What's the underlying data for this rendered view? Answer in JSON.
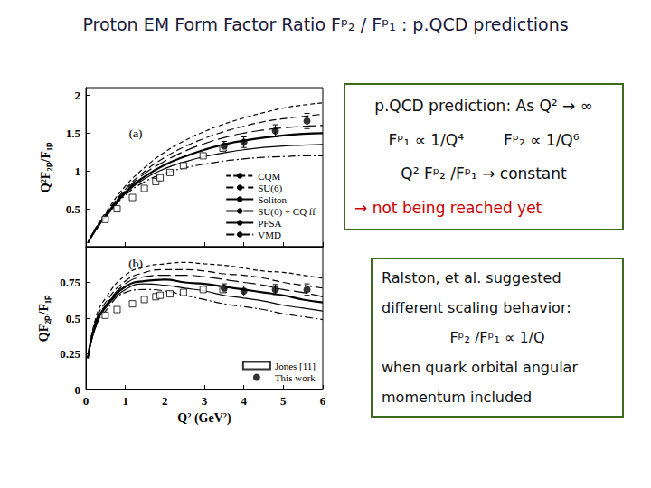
{
  "title": "Proton EM Form Factor Ratio Fᵖ₂ / Fᵖ₁ : p.QCD predictions",
  "chart_data": [
    {
      "type": "line",
      "ylabel": "Q²F₂ₚ/F₁ₚ",
      "color": "#000000",
      "xlim": [
        0,
        6
      ],
      "xticks": [
        0,
        1,
        2,
        3,
        4,
        5,
        6
      ],
      "ylim": [
        0,
        2.1
      ],
      "yticks": [
        0.5,
        1,
        1.5,
        2
      ],
      "grid": false,
      "legend": "lower right",
      "tick_labels": "y",
      "annotations": [
        {
          "text": "(a)",
          "x": 1.26,
          "y": 1.5
        }
      ],
      "series": [
        {
          "name": "CQM",
          "type": "line",
          "line_style": "short-dash",
          "x": [
            0.05,
            0.25,
            0.5,
            1,
            1.5,
            2,
            2.5,
            3,
            3.5,
            4,
            4.5,
            5,
            5.5,
            6
          ],
          "values": [
            0.05,
            0.25,
            0.45,
            0.8,
            1.05,
            1.25,
            1.4,
            1.52,
            1.62,
            1.7,
            1.77,
            1.83,
            1.87,
            1.9
          ]
        },
        {
          "name": "SU(6)",
          "type": "line",
          "line_style": "dash",
          "x": [
            0.05,
            0.25,
            0.5,
            1,
            1.5,
            2,
            2.5,
            3,
            3.5,
            4,
            4.5,
            5,
            5.5,
            6
          ],
          "values": [
            0.05,
            0.24,
            0.43,
            0.76,
            1.0,
            1.18,
            1.32,
            1.43,
            1.52,
            1.59,
            1.65,
            1.69,
            1.72,
            1.75
          ]
        },
        {
          "name": "Soliton",
          "type": "line",
          "line_style": "thick",
          "x": [
            0.05,
            0.25,
            0.5,
            1,
            1.5,
            2,
            2.5,
            3,
            3.5,
            4,
            4.5,
            5,
            5.5,
            6
          ],
          "values": [
            0.05,
            0.23,
            0.41,
            0.72,
            0.93,
            1.08,
            1.19,
            1.28,
            1.35,
            1.4,
            1.44,
            1.47,
            1.49,
            1.5
          ]
        },
        {
          "name": "SU(6) + CQ ff",
          "type": "line",
          "line_style": "long-dash",
          "x": [
            0.05,
            0.25,
            0.5,
            1,
            1.5,
            2,
            2.5,
            3,
            3.5,
            4,
            4.5,
            5,
            5.5,
            6
          ],
          "values": [
            0.05,
            0.24,
            0.42,
            0.74,
            0.97,
            1.13,
            1.26,
            1.36,
            1.44,
            1.5,
            1.54,
            1.57,
            1.59,
            1.6
          ]
        },
        {
          "name": "PFSA",
          "type": "line",
          "line_style": "solid",
          "x": [
            0.05,
            0.25,
            0.5,
            1,
            1.5,
            2,
            2.5,
            3,
            3.5,
            4,
            4.5,
            5,
            5.5,
            6
          ],
          "values": [
            0.05,
            0.22,
            0.4,
            0.7,
            0.9,
            1.03,
            1.12,
            1.19,
            1.24,
            1.28,
            1.31,
            1.33,
            1.34,
            1.35
          ]
        },
        {
          "name": "VMD",
          "type": "line",
          "line_style": "dash-dot",
          "x": [
            0.05,
            0.25,
            0.5,
            1,
            1.5,
            2,
            2.5,
            3,
            3.5,
            4,
            4.5,
            5,
            5.5,
            6
          ],
          "values": [
            0.05,
            0.22,
            0.39,
            0.68,
            0.86,
            0.97,
            1.04,
            1.09,
            1.13,
            1.16,
            1.18,
            1.19,
            1.2,
            1.2
          ]
        },
        {
          "type": "scatter",
          "marker": "square-open",
          "x": [
            0.49,
            0.79,
            1.18,
            1.48,
            1.77,
            1.88,
            2.13,
            2.47,
            2.97,
            3.47
          ],
          "values": [
            0.36,
            0.5,
            0.65,
            0.77,
            0.86,
            0.91,
            0.98,
            1.07,
            1.2,
            1.3
          ]
        },
        {
          "type": "scatter",
          "marker": "circle",
          "x": [
            3.5,
            4.0,
            4.8,
            5.6
          ],
          "values": [
            1.33,
            1.38,
            1.53,
            1.66
          ],
          "errors": [
            0.06,
            0.07,
            0.08,
            0.1
          ]
        }
      ]
    },
    {
      "type": "line",
      "xlabel": "Q² (GeV²)",
      "ylabel": "QF₂ₚ/F₁ₚ",
      "color": "#000000",
      "xlim": [
        0,
        6
      ],
      "xticks": [
        0,
        1,
        2,
        3,
        4,
        5,
        6
      ],
      "ylim": [
        0,
        1
      ],
      "yticks": [
        0,
        0.25,
        0.5,
        0.75
      ],
      "grid": false,
      "legend": "lower right",
      "annotations": [
        {
          "text": "(b)",
          "x": 1.26,
          "y": 0.88
        }
      ],
      "series": [
        {
          "type": "line",
          "line_style": "short-dash",
          "x": [
            0.05,
            0.25,
            0.5,
            1,
            1.5,
            2,
            2.5,
            3,
            3.5,
            4,
            4.5,
            5,
            5.5,
            6
          ],
          "values": [
            0.22,
            0.5,
            0.64,
            0.8,
            0.86,
            0.88,
            0.89,
            0.88,
            0.87,
            0.85,
            0.83,
            0.82,
            0.8,
            0.78
          ]
        },
        {
          "type": "line",
          "line_style": "dash",
          "x": [
            0.05,
            0.25,
            0.5,
            1,
            1.5,
            2,
            2.5,
            3,
            3.5,
            4,
            4.5,
            5,
            5.5,
            6
          ],
          "values": [
            0.22,
            0.48,
            0.61,
            0.76,
            0.82,
            0.84,
            0.84,
            0.83,
            0.81,
            0.8,
            0.78,
            0.75,
            0.73,
            0.71
          ]
        },
        {
          "type": "line",
          "line_style": "thick",
          "x": [
            0.05,
            0.25,
            0.5,
            1,
            1.5,
            2,
            2.5,
            3,
            3.5,
            4,
            4.5,
            5,
            5.5,
            6
          ],
          "values": [
            0.22,
            0.46,
            0.58,
            0.72,
            0.76,
            0.77,
            0.75,
            0.74,
            0.72,
            0.7,
            0.68,
            0.66,
            0.63,
            0.61
          ]
        },
        {
          "type": "line",
          "line_style": "long-dash",
          "x": [
            0.05,
            0.25,
            0.5,
            1,
            1.5,
            2,
            2.5,
            3,
            3.5,
            4,
            4.5,
            5,
            5.5,
            6
          ],
          "values": [
            0.22,
            0.48,
            0.59,
            0.74,
            0.79,
            0.8,
            0.8,
            0.79,
            0.77,
            0.75,
            0.73,
            0.7,
            0.68,
            0.65
          ]
        },
        {
          "type": "line",
          "line_style": "solid",
          "x": [
            0.05,
            0.25,
            0.5,
            1,
            1.5,
            2,
            2.5,
            3,
            3.5,
            4,
            4.5,
            5,
            5.5,
            6
          ],
          "values": [
            0.22,
            0.44,
            0.57,
            0.7,
            0.74,
            0.73,
            0.71,
            0.69,
            0.66,
            0.64,
            0.62,
            0.59,
            0.57,
            0.55
          ]
        },
        {
          "type": "line",
          "line_style": "dash-dot",
          "x": [
            0.05,
            0.25,
            0.5,
            1,
            1.5,
            2,
            2.5,
            3,
            3.5,
            4,
            4.5,
            5,
            5.5,
            6
          ],
          "values": [
            0.22,
            0.44,
            0.55,
            0.68,
            0.7,
            0.69,
            0.66,
            0.63,
            0.6,
            0.58,
            0.56,
            0.53,
            0.51,
            0.49
          ]
        },
        {
          "name": "Jones [11]",
          "type": "scatter",
          "marker": "square-open",
          "x": [
            0.49,
            0.79,
            1.18,
            1.48,
            1.77,
            1.88,
            2.13,
            2.47,
            2.97,
            3.47
          ],
          "values": [
            0.52,
            0.56,
            0.6,
            0.63,
            0.65,
            0.66,
            0.67,
            0.68,
            0.7,
            0.7
          ]
        },
        {
          "name": "This work",
          "type": "scatter",
          "marker": "circle",
          "x": [
            3.5,
            4.0,
            4.8,
            5.6
          ],
          "values": [
            0.71,
            0.69,
            0.7,
            0.7
          ],
          "errors": [
            0.03,
            0.035,
            0.035,
            0.04
          ]
        }
      ]
    }
  ],
  "text_boxes": [
    {
      "lines": [
        "p.QCD prediction: As Q² → ∞",
        [
          "Fᵖ₁ ∝ 1/Q⁴",
          "Fᵖ₂ ∝ 1/Q⁶"
        ],
        "Q² Fᵖ₂ /Fᵖ₁ → constant",
        {
          "text": "→ not being reached yet",
          "color": "#cc0000"
        }
      ]
    },
    {
      "lines": [
        "Ralston, et al. suggested",
        "different scaling behavior:",
        "Fᵖ₂ /Fᵖ₁ ∝ 1/Q",
        "when quark orbital angular",
        "momentum included"
      ]
    }
  ]
}
